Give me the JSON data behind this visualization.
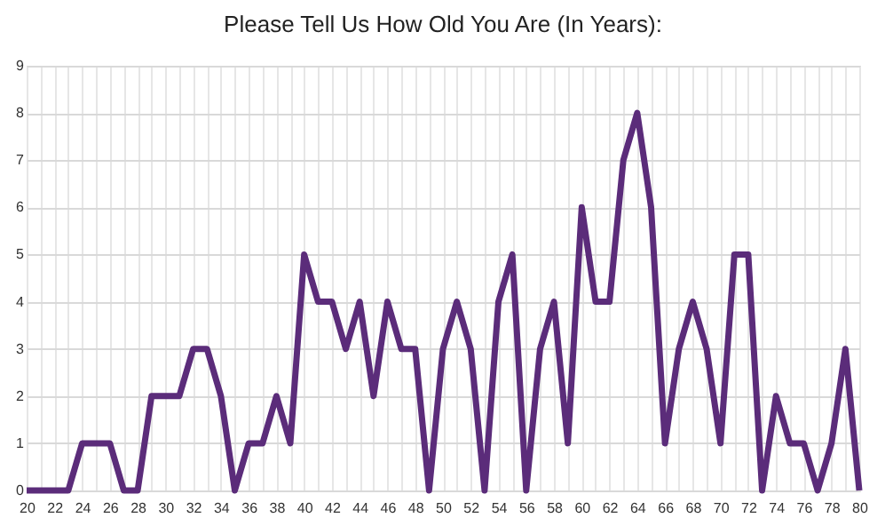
{
  "chart_data": {
    "type": "line",
    "title": "Please Tell Us How Old You Are (In Years):",
    "x": [
      20,
      21,
      22,
      23,
      24,
      25,
      26,
      27,
      28,
      29,
      30,
      31,
      32,
      33,
      34,
      35,
      36,
      37,
      38,
      39,
      40,
      41,
      42,
      43,
      44,
      45,
      46,
      47,
      48,
      49,
      50,
      51,
      52,
      53,
      54,
      55,
      56,
      57,
      58,
      59,
      60,
      61,
      62,
      63,
      64,
      65,
      66,
      67,
      68,
      69,
      70,
      71,
      72,
      73,
      74,
      75,
      76,
      77,
      78,
      79,
      80
    ],
    "series": [
      {
        "color": "#5b2c7a",
        "values": [
          0,
          0,
          0,
          0,
          1,
          1,
          1,
          0,
          0,
          2,
          2,
          2,
          3,
          3,
          2,
          0,
          1,
          1,
          2,
          1,
          5,
          4,
          4,
          3,
          4,
          2,
          4,
          3,
          3,
          0,
          3,
          4,
          3,
          0,
          4,
          5,
          0,
          3,
          4,
          1,
          6,
          4,
          4,
          7,
          8,
          6,
          1,
          3,
          4,
          3,
          1,
          5,
          5,
          0,
          2,
          1,
          1,
          0,
          1,
          3,
          0
        ]
      }
    ],
    "xlim": [
      20,
      80
    ],
    "xticks": [
      20,
      {
        "value": 21,
        "label": null
      },
      22,
      {
        "value": 23,
        "label": null
      },
      24,
      {
        "value": 25,
        "label": null
      },
      26,
      {
        "value": 27,
        "label": null
      },
      28,
      {
        "value": 29,
        "label": null
      },
      30,
      {
        "value": 31,
        "label": null
      },
      32,
      {
        "value": 33,
        "label": null
      },
      34,
      {
        "value": 35,
        "label": null
      },
      36,
      {
        "value": 37,
        "label": null
      },
      38,
      {
        "value": 39,
        "label": null
      },
      40,
      {
        "value": 41,
        "label": null
      },
      42,
      {
        "value": 43,
        "label": null
      },
      44,
      {
        "value": 45,
        "label": null
      },
      46,
      {
        "value": 47,
        "label": null
      },
      48,
      {
        "value": 49,
        "label": null
      },
      50,
      {
        "value": 51,
        "label": null
      },
      52,
      {
        "value": 53,
        "label": null
      },
      54,
      {
        "value": 55,
        "label": null
      },
      56,
      {
        "value": 57,
        "label": null
      },
      58,
      {
        "value": 59,
        "label": null
      },
      60,
      {
        "value": 61,
        "label": null
      },
      62,
      {
        "value": 63,
        "label": null
      },
      64,
      {
        "value": 65,
        "label": null
      },
      66,
      {
        "value": 67,
        "label": null
      },
      68,
      {
        "value": 69,
        "label": null
      },
      70,
      {
        "value": 71,
        "label": null
      },
      72,
      {
        "value": 73,
        "label": null
      },
      74,
      {
        "value": 75,
        "label": null
      },
      76,
      {
        "value": 77,
        "label": null
      },
      78,
      {
        "value": 79,
        "label": null
      },
      80
    ],
    "ylim": [
      0,
      9
    ],
    "yticks": [
      0,
      1,
      2,
      3,
      4,
      5,
      6,
      7,
      8,
      9
    ],
    "grid": true,
    "marker": "none",
    "line_style": "solid"
  }
}
